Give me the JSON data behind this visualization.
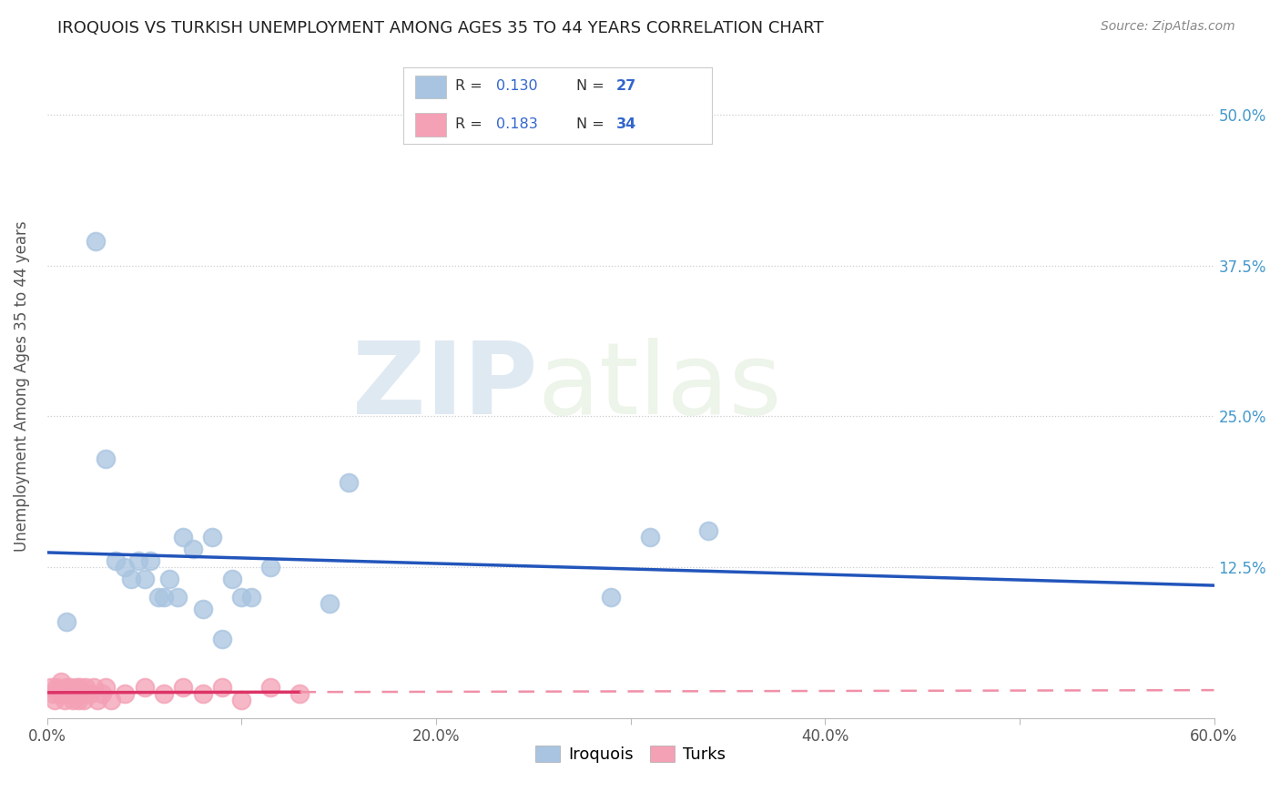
{
  "title": "IROQUOIS VS TURKISH UNEMPLOYMENT AMONG AGES 35 TO 44 YEARS CORRELATION CHART",
  "source": "Source: ZipAtlas.com",
  "ylabel": "Unemployment Among Ages 35 to 44 years",
  "xlim": [
    0.0,
    0.6
  ],
  "ylim": [
    0.0,
    0.55
  ],
  "xticks": [
    0.0,
    0.1,
    0.2,
    0.3,
    0.4,
    0.5,
    0.6
  ],
  "xticklabels": [
    "0.0%",
    "",
    "20.0%",
    "",
    "40.0%",
    "",
    "60.0%"
  ],
  "yticks": [
    0.125,
    0.25,
    0.375,
    0.5
  ],
  "yticklabels": [
    "12.5%",
    "25.0%",
    "37.5%",
    "50.0%"
  ],
  "iroquois_R": "0.130",
  "iroquois_N": "27",
  "turks_R": "0.183",
  "turks_N": "34",
  "iroquois_color": "#a8c4e0",
  "turks_color": "#f4a0b5",
  "trendline_iroquois_color": "#2255bb",
  "trendline_turks_solid_color": "#dd3366",
  "trendline_turks_dash_color": "#f090a8",
  "watermark_zip": "ZIP",
  "watermark_atlas": "atlas",
  "iroquois_x": [
    0.01,
    0.025,
    0.03,
    0.035,
    0.04,
    0.043,
    0.047,
    0.05,
    0.053,
    0.057,
    0.06,
    0.063,
    0.067,
    0.07,
    0.075,
    0.08,
    0.085,
    0.09,
    0.095,
    0.1,
    0.105,
    0.115,
    0.145,
    0.155,
    0.29,
    0.31,
    0.34
  ],
  "iroquois_y": [
    0.08,
    0.395,
    0.215,
    0.13,
    0.125,
    0.115,
    0.13,
    0.115,
    0.13,
    0.1,
    0.1,
    0.115,
    0.1,
    0.15,
    0.14,
    0.09,
    0.15,
    0.065,
    0.115,
    0.1,
    0.1,
    0.125,
    0.095,
    0.195,
    0.1,
    0.15,
    0.155
  ],
  "turks_x": [
    0.002,
    0.003,
    0.004,
    0.005,
    0.006,
    0.007,
    0.008,
    0.009,
    0.01,
    0.011,
    0.012,
    0.013,
    0.014,
    0.015,
    0.016,
    0.017,
    0.018,
    0.019,
    0.02,
    0.022,
    0.024,
    0.026,
    0.028,
    0.03,
    0.033,
    0.04,
    0.05,
    0.06,
    0.07,
    0.08,
    0.09,
    0.1,
    0.115,
    0.13
  ],
  "turks_y": [
    0.025,
    0.02,
    0.015,
    0.025,
    0.02,
    0.03,
    0.02,
    0.015,
    0.025,
    0.02,
    0.025,
    0.015,
    0.02,
    0.025,
    0.015,
    0.025,
    0.02,
    0.015,
    0.025,
    0.02,
    0.025,
    0.015,
    0.02,
    0.025,
    0.015,
    0.02,
    0.025,
    0.02,
    0.025,
    0.02,
    0.025,
    0.015,
    0.025,
    0.02
  ]
}
